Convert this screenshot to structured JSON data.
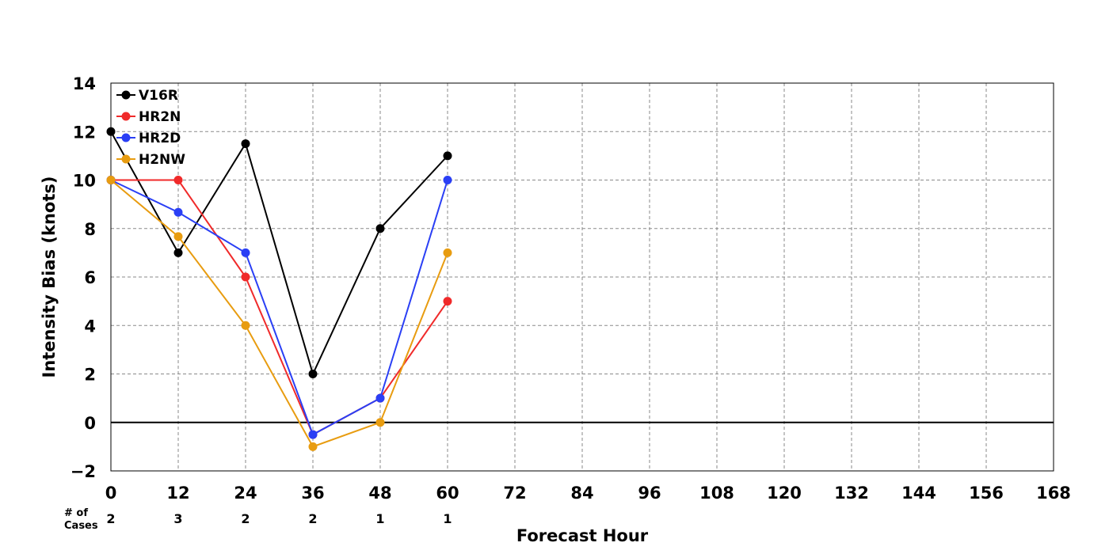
{
  "chart_data": {
    "type": "line",
    "xlabel": "Forecast Hour",
    "ylabel": "Intensity Bias (knots)",
    "xlim": [
      0,
      168
    ],
    "ylim": [
      -2,
      14
    ],
    "x_ticks": [
      0,
      12,
      24,
      36,
      48,
      60,
      72,
      84,
      96,
      108,
      120,
      132,
      144,
      156,
      168
    ],
    "y_ticks": [
      -2,
      0,
      2,
      4,
      6,
      8,
      10,
      12,
      14
    ],
    "y_tick_labels": [
      "−2",
      "0",
      "2",
      "4",
      "6",
      "8",
      "10",
      "12",
      "14"
    ],
    "grid": true,
    "legend_position": "top-left",
    "cases_label_line1": "# of",
    "cases_label_line2": "Cases",
    "cases": [
      {
        "x": 0,
        "count": "2"
      },
      {
        "x": 12,
        "count": "3"
      },
      {
        "x": 24,
        "count": "2"
      },
      {
        "x": 36,
        "count": "2"
      },
      {
        "x": 48,
        "count": "1"
      },
      {
        "x": 60,
        "count": "1"
      }
    ],
    "x": [
      0,
      12,
      24,
      36,
      48,
      60
    ],
    "series": [
      {
        "name": "V16R",
        "color": "#000000",
        "values": [
          12,
          7,
          11.5,
          2,
          8,
          11
        ]
      },
      {
        "name": "HR2N",
        "color": "#f02a2a",
        "values": [
          10,
          10,
          6,
          -0.5,
          1,
          5
        ]
      },
      {
        "name": "HR2D",
        "color": "#2a3ff5",
        "values": [
          10,
          8.67,
          7,
          -0.5,
          1,
          10
        ]
      },
      {
        "name": "H2NW",
        "color": "#e89c10",
        "values": [
          10,
          7.67,
          4,
          -1,
          0,
          7
        ]
      }
    ]
  }
}
